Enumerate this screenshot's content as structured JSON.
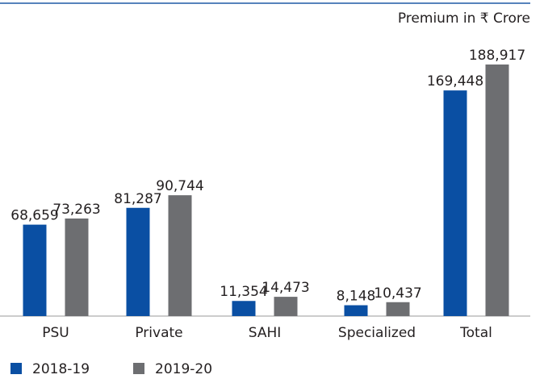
{
  "chart_data": {
    "type": "bar",
    "subtitle": "Premium in ₹ Crore",
    "categories": [
      "PSU",
      "Private",
      "SAHI",
      "Specialized",
      "Total"
    ],
    "series": [
      {
        "name": "2018-19",
        "color": "#0a4fa3",
        "values": [
          68659,
          81287,
          11354,
          8148,
          169448
        ],
        "value_labels": [
          "68,659",
          "81,287",
          "11,354",
          "8,148",
          "169,448"
        ]
      },
      {
        "name": "2019-20",
        "color": "#6d6e71",
        "values": [
          73263,
          90744,
          14473,
          10437,
          188917
        ],
        "value_labels": [
          "73,263",
          "90,744",
          "14,473",
          "10,437",
          "188,917"
        ]
      }
    ]
  }
}
